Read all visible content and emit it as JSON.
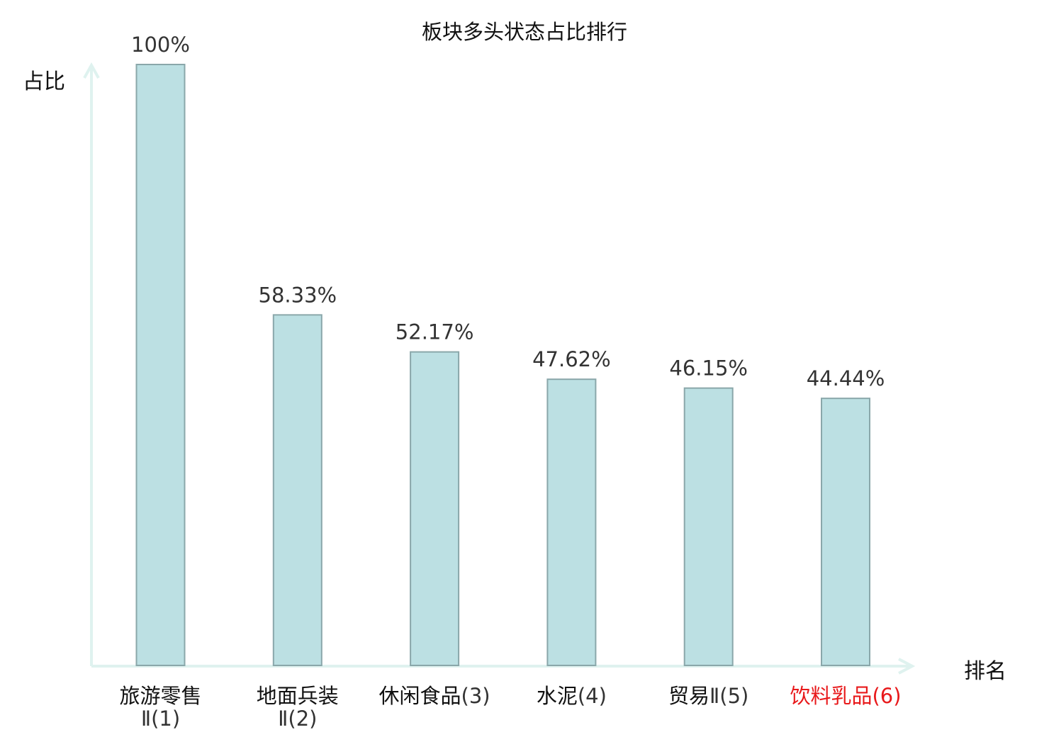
{
  "chart_data": {
    "type": "bar",
    "title": "板块多头状态占比排行",
    "xlabel": "排名",
    "ylabel": "占比",
    "ylim": [
      0,
      100
    ],
    "grid": false,
    "categories": [
      {
        "name": "旅游零售",
        "suffix": "Ⅱ(1)",
        "wrap": true,
        "highlight": false
      },
      {
        "name": "地面兵装",
        "suffix": "Ⅱ(2)",
        "wrap": true,
        "highlight": false
      },
      {
        "name": "休闲食品",
        "suffix": "(3)",
        "wrap": false,
        "highlight": false
      },
      {
        "name": "水泥",
        "suffix": "(4)",
        "wrap": false,
        "highlight": false
      },
      {
        "name": "贸易",
        "suffix": "Ⅱ(5)",
        "wrap": false,
        "highlight": false
      },
      {
        "name": "饮料乳品",
        "suffix": "(6)",
        "wrap": false,
        "highlight": true
      }
    ],
    "values": [
      100,
      58.33,
      52.17,
      47.62,
      46.15,
      44.44
    ],
    "value_labels": [
      "100%",
      "58.33%",
      "52.17%",
      "47.62%",
      "46.15%",
      "44.44%"
    ],
    "colors": {
      "bar_fill": "#bce0e3",
      "bar_stroke": "#8aa7aa",
      "axis": "#dff2ef",
      "highlight_text": "#e8191b"
    }
  }
}
